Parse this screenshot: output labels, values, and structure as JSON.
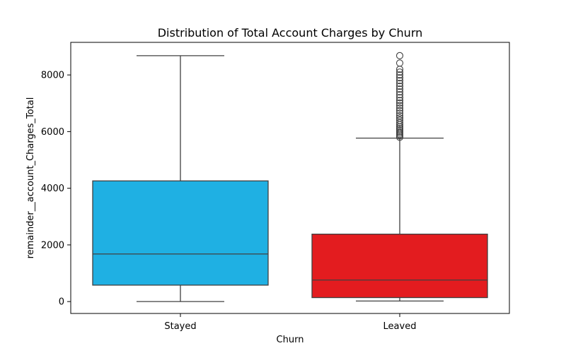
{
  "chart_data": {
    "type": "box",
    "title": "Distribution of Total Account Charges by Churn",
    "xlabel": "Churn",
    "ylabel": "remainder__account_Charges_Total",
    "ylim": [
      -420,
      9150
    ],
    "yticks": [
      0,
      2000,
      4000,
      6000,
      8000
    ],
    "grid": false,
    "categories": [
      "Stayed",
      "Leaved"
    ],
    "series": [
      {
        "category": "Stayed",
        "color": "#1fb0e3",
        "whisker_low": 0,
        "q1": 580,
        "median": 1680,
        "q3": 4260,
        "whisker_high": 8680,
        "outliers": []
      },
      {
        "category": "Leaved",
        "color": "#e31c1f",
        "whisker_low": 20,
        "q1": 140,
        "median": 760,
        "q3": 2380,
        "whisker_high": 5770,
        "outliers": [
          5800,
          5850,
          5900,
          5950,
          6000,
          6060,
          6120,
          6180,
          6250,
          6320,
          6400,
          6480,
          6560,
          6650,
          6740,
          6830,
          6920,
          7010,
          7100,
          7200,
          7300,
          7400,
          7500,
          7600,
          7700,
          7800,
          7900,
          8000,
          8100,
          8200,
          8420,
          8680
        ]
      }
    ]
  }
}
